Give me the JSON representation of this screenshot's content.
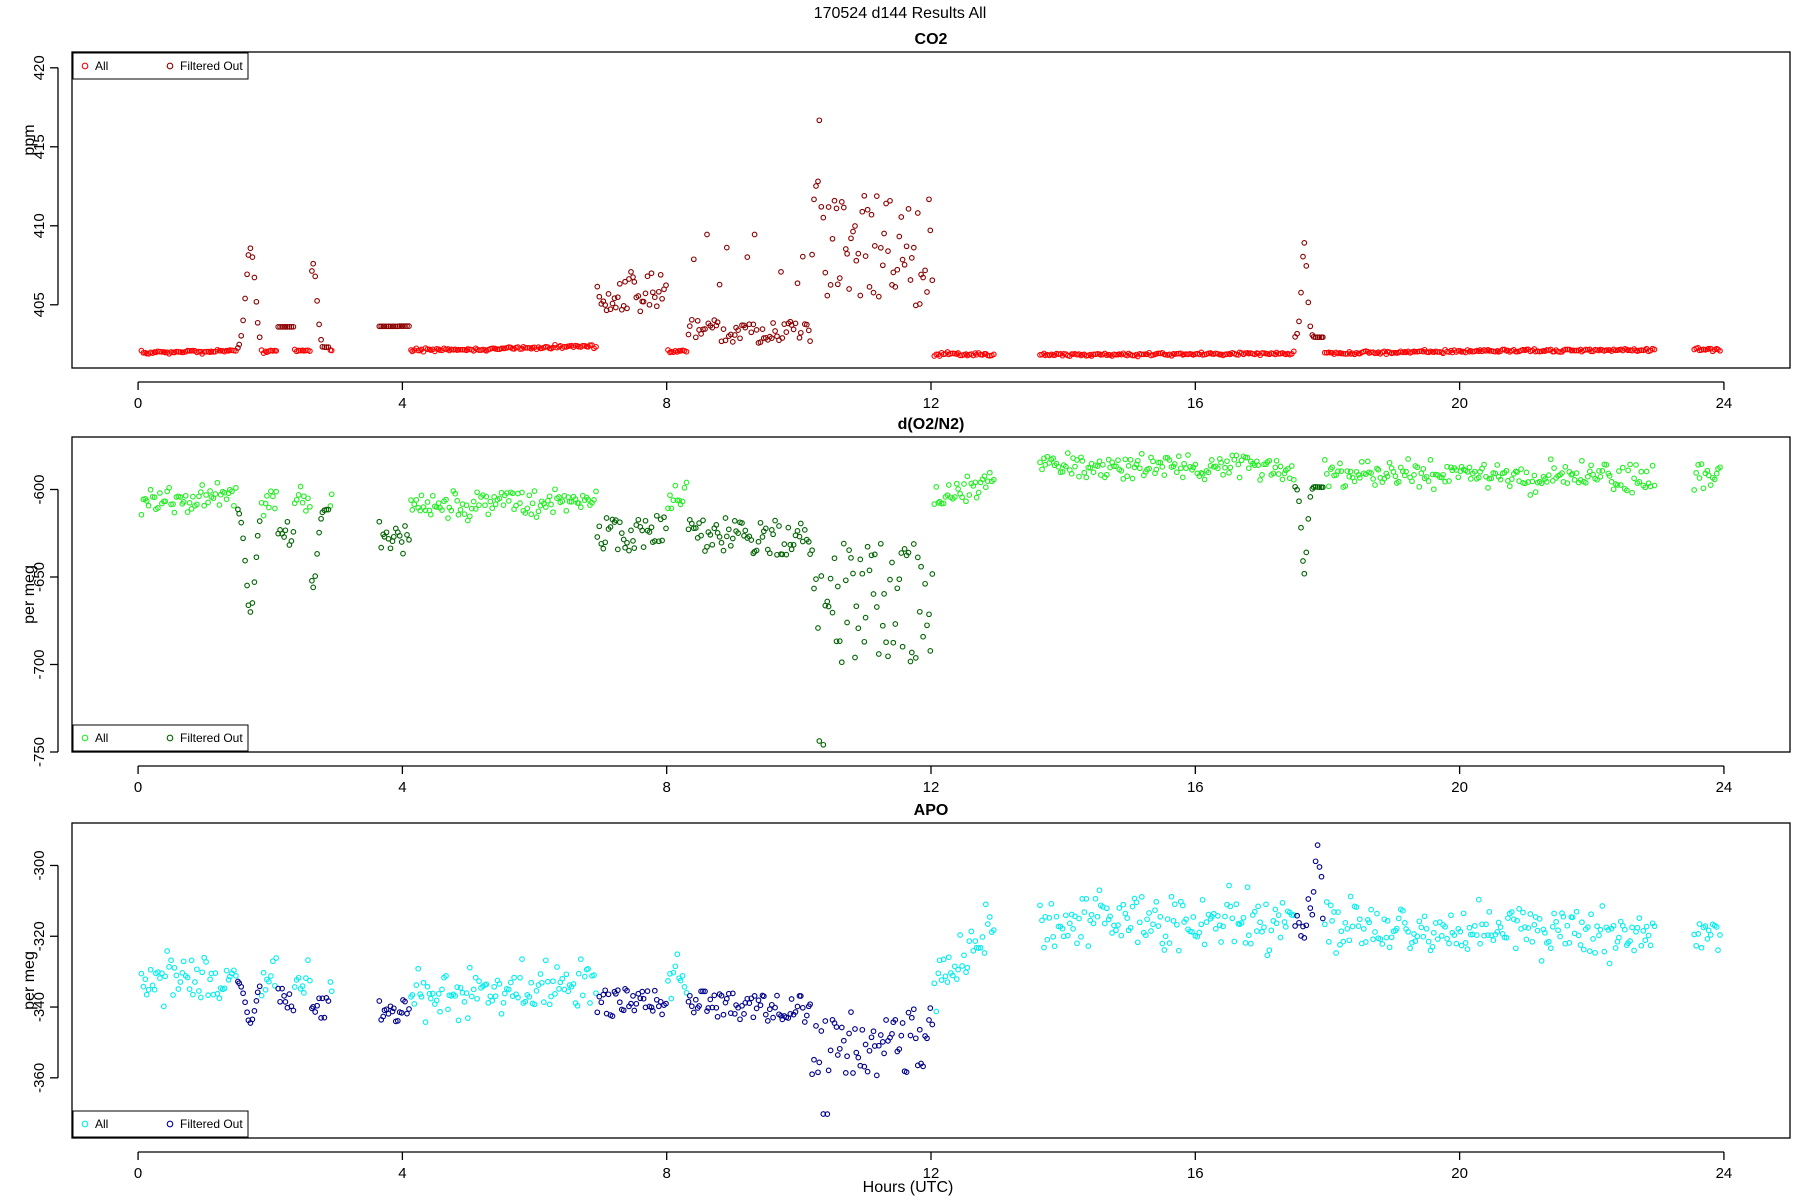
{
  "figure": {
    "title": "170524   d144   Results All",
    "xlabel": "Hours (UTC)"
  },
  "chart_data": [
    {
      "type": "scatter",
      "title": "CO2",
      "ylabel": "ppm",
      "xlim": [
        -1,
        25
      ],
      "ylim": [
        401.0,
        421.0
      ],
      "xticks": [
        0,
        4,
        8,
        12,
        16,
        20,
        24
      ],
      "yticks": [
        405,
        410,
        415,
        420
      ],
      "legend": {
        "position": "top-left",
        "entries": [
          "All",
          "Filtered Out"
        ]
      },
      "series": [
        {
          "name": "All",
          "color": "#ff0000",
          "points": []
        },
        {
          "name": "Filtered Out",
          "color": "#8b0000",
          "points": []
        }
      ]
    },
    {
      "type": "scatter",
      "title": "d(O2/N2)",
      "ylabel": "per meg",
      "xlim": [
        -1,
        25
      ],
      "ylim": [
        -750,
        -570
      ],
      "xticks": [
        0,
        4,
        8,
        12,
        16,
        20,
        24
      ],
      "yticks": [
        -750,
        -700,
        -650,
        -600
      ],
      "legend": {
        "position": "bottom-left",
        "entries": [
          "All",
          "Filtered Out"
        ]
      },
      "series": [
        {
          "name": "All",
          "color": "#22ee22",
          "points": []
        },
        {
          "name": "Filtered Out",
          "color": "#006400",
          "points": []
        }
      ]
    },
    {
      "type": "scatter",
      "title": "APO",
      "ylabel": "per meg",
      "xlim": [
        -1,
        25
      ],
      "ylim": [
        -377,
        -288
      ],
      "xticks": [
        0,
        4,
        8,
        12,
        16,
        20,
        24
      ],
      "yticks": [
        -360,
        -340,
        -320,
        -300
      ],
      "legend": {
        "position": "bottom-left",
        "entries": [
          "All",
          "Filtered Out"
        ]
      },
      "series": [
        {
          "name": "All",
          "color": "#00eeee",
          "points": []
        },
        {
          "name": "Filtered Out",
          "color": "#00008b",
          "points": []
        }
      ]
    }
  ]
}
